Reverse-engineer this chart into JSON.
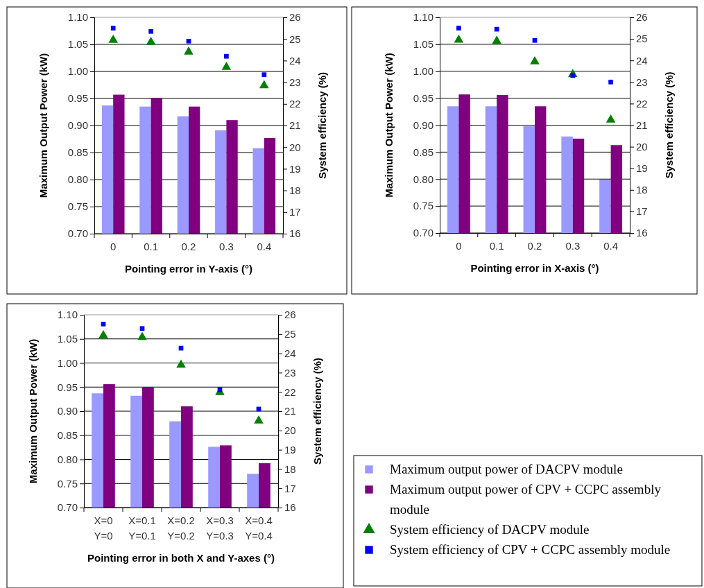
{
  "chart_data": [
    {
      "type": "bar",
      "categories": [
        "0",
        "0.1",
        "0.2",
        "0.3",
        "0.4"
      ],
      "xlabel": "Pointing error in Y-axis (°)",
      "ylabel": "Maximum Output Power (kW)",
      "y2label": "System efficiency (%)",
      "series": [
        {
          "color": "#9999ff",
          "values": [
            0.937,
            0.935,
            0.917,
            0.891,
            0.858
          ]
        },
        {
          "color": "#800080",
          "values": [
            0.957,
            0.951,
            0.935,
            0.91,
            0.877
          ]
        },
        {
          "type": "scatter",
          "axis": "y2",
          "marker": "triangle",
          "color": "#008000",
          "values": [
            24.95,
            24.85,
            24.4,
            23.7,
            22.85
          ]
        },
        {
          "type": "scatter",
          "axis": "y2",
          "marker": "square",
          "color": "#0000ff",
          "values": [
            25.5,
            25.35,
            24.9,
            24.2,
            23.35
          ]
        }
      ],
      "ylim": [
        0.7,
        1.1
      ],
      "yticks": [
        {
          "value": 0.7,
          "label": "0.70"
        },
        {
          "value": 0.75,
          "label": "0.75"
        },
        {
          "value": 0.8,
          "label": "0.80"
        },
        {
          "value": 0.85,
          "label": "0.85"
        },
        {
          "value": 0.9,
          "label": "0.90"
        },
        {
          "value": 0.95,
          "label": "0.95"
        },
        {
          "value": 1.0,
          "label": "1.00"
        },
        {
          "value": 1.05,
          "label": "1.05"
        },
        {
          "value": 1.1,
          "label": "1.10"
        }
      ],
      "y2lim": [
        16,
        26
      ],
      "y2ticks": [
        16,
        17,
        18,
        19,
        20,
        21,
        22,
        23,
        24,
        25,
        26
      ],
      "grid": "y",
      "legend": false
    },
    {
      "type": "bar",
      "categories": [
        "0",
        "0.1",
        "0.2",
        "0.3",
        "0.4"
      ],
      "xlabel": "Pointing error in X-axis (°)",
      "ylabel": "Maximum Output Power (kW)",
      "y2label": "System efficiency (%)",
      "series": [
        {
          "color": "#9999ff",
          "values": [
            0.935,
            0.935,
            0.898,
            0.879,
            0.799
          ]
        },
        {
          "color": "#800080",
          "values": [
            0.957,
            0.956,
            0.935,
            0.875,
            0.863
          ]
        },
        {
          "type": "scatter",
          "axis": "y2",
          "marker": "triangle",
          "color": "#008000",
          "values": [
            24.95,
            24.9,
            23.95,
            23.35,
            21.25
          ]
        },
        {
          "type": "scatter",
          "axis": "y2",
          "marker": "square",
          "color": "#0000ff",
          "values": [
            25.5,
            25.45,
            24.93,
            23.3,
            23.0
          ]
        }
      ],
      "ylim": [
        0.7,
        1.1
      ],
      "yticks": [
        {
          "value": 0.7,
          "label": "0.70"
        },
        {
          "value": 0.75,
          "label": "0.75"
        },
        {
          "value": 0.8,
          "label": "0.80"
        },
        {
          "value": 0.85,
          "label": "0.85"
        },
        {
          "value": 0.9,
          "label": "0.90"
        },
        {
          "value": 0.95,
          "label": "0.95"
        },
        {
          "value": 1.0,
          "label": "1.00"
        },
        {
          "value": 1.05,
          "label": "1.05"
        },
        {
          "value": 1.1,
          "label": "1.10"
        }
      ],
      "y2lim": [
        16,
        26
      ],
      "y2ticks": [
        16,
        17,
        18,
        19,
        20,
        21,
        22,
        23,
        24,
        25,
        26
      ],
      "grid": "y",
      "legend": false
    },
    {
      "type": "bar",
      "categories": [
        "X=0\nY=0",
        "X=0.1\nY=0.1",
        "X=0.2\nY=0.2",
        "X=0.3\nY=0.3",
        "X=0.4\nY=0.4"
      ],
      "xlabel": "Pointing error in both X and Y-axes (°)",
      "ylabel": "Maximum Output Power (kW)",
      "y2label": "System efficiency (%)",
      "series": [
        {
          "name": "Maximum output power of DACPV module",
          "color": "#9999ff",
          "values": [
            0.937,
            0.932,
            0.879,
            0.826,
            0.77
          ]
        },
        {
          "name": "Maximum output power of CPV + CCPC assembly module",
          "color": "#800080",
          "values": [
            0.956,
            0.95,
            0.91,
            0.829,
            0.792
          ]
        },
        {
          "type": "scatter",
          "name": "System efficiency of DACPV module",
          "axis": "y2",
          "marker": "triangle",
          "color": "#008000",
          "values": [
            24.93,
            24.84,
            23.4,
            21.98,
            20.5
          ]
        },
        {
          "type": "scatter",
          "name": "System efficiency of CPV + CCPC assembly module",
          "axis": "y2",
          "marker": "square",
          "color": "#0000ff",
          "values": [
            25.52,
            25.29,
            24.27,
            22.12,
            21.11
          ]
        }
      ],
      "ylim": [
        0.7,
        1.1
      ],
      "yticks": [
        {
          "value": 0.7,
          "label": "0.70"
        },
        {
          "value": 0.75,
          "label": "0.75"
        },
        {
          "value": 0.8,
          "label": "0.80"
        },
        {
          "value": 0.85,
          "label": "0.85"
        },
        {
          "value": 0.9,
          "label": "0.90"
        },
        {
          "value": 0.95,
          "label": "0.95"
        },
        {
          "value": 1.0,
          "label": "1.00"
        },
        {
          "value": 1.05,
          "label": "1.05"
        },
        {
          "value": 1.1,
          "label": "1.10"
        }
      ],
      "y2lim": [
        16,
        26
      ],
      "y2ticks": [
        16,
        17,
        18,
        19,
        20,
        21,
        22,
        23,
        24,
        25,
        26
      ],
      "grid": "y",
      "legend": "right"
    }
  ]
}
